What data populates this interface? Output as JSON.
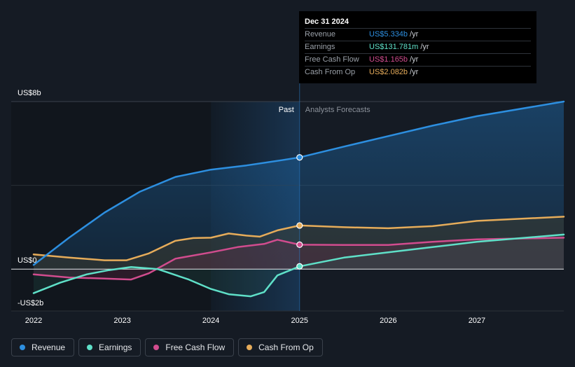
{
  "chart_data": {
    "type": "line",
    "x_axis": {
      "min": 2022.0,
      "max": 2027.98,
      "ticks": [
        "2022",
        "2023",
        "2024",
        "2025",
        "2026",
        "2027"
      ]
    },
    "y_axis": {
      "min": -2,
      "max": 8,
      "tick_labels": [
        {
          "value": 8,
          "label": "US$8b"
        },
        {
          "value": 0,
          "label": "US$0"
        },
        {
          "value": -2,
          "label": "-US$2b"
        }
      ]
    },
    "past_label": "Past",
    "forecast_label": "Analysts Forecasts",
    "divider_x": 2025.0,
    "highlight_start_x": 2024.0,
    "series": [
      {
        "name": "Revenue",
        "color": "#2d8fe0",
        "fill": true,
        "marker": 5.334,
        "points": [
          [
            2022.0,
            0.2
          ],
          [
            2022.4,
            1.5
          ],
          [
            2022.8,
            2.7
          ],
          [
            2023.2,
            3.7
          ],
          [
            2023.6,
            4.4
          ],
          [
            2024.0,
            4.75
          ],
          [
            2024.4,
            4.95
          ],
          [
            2024.8,
            5.2
          ],
          [
            2025.0,
            5.334
          ],
          [
            2025.5,
            5.85
          ],
          [
            2026.0,
            6.35
          ],
          [
            2026.5,
            6.85
          ],
          [
            2027.0,
            7.3
          ],
          [
            2027.98,
            8.0
          ]
        ]
      },
      {
        "name": "Earnings",
        "color": "#5fe0c8",
        "fill": false,
        "marker": 0.132,
        "points": [
          [
            2022.0,
            -1.15
          ],
          [
            2022.3,
            -0.65
          ],
          [
            2022.6,
            -0.25
          ],
          [
            2022.85,
            -0.05
          ],
          [
            2023.1,
            0.1
          ],
          [
            2023.4,
            0.0
          ],
          [
            2023.75,
            -0.5
          ],
          [
            2024.0,
            -0.95
          ],
          [
            2024.2,
            -1.2
          ],
          [
            2024.45,
            -1.3
          ],
          [
            2024.6,
            -1.1
          ],
          [
            2024.75,
            -0.3
          ],
          [
            2025.0,
            0.132
          ],
          [
            2025.5,
            0.55
          ],
          [
            2026.0,
            0.8
          ],
          [
            2026.5,
            1.05
          ],
          [
            2027.0,
            1.3
          ],
          [
            2027.98,
            1.65
          ]
        ]
      },
      {
        "name": "Free Cash Flow",
        "color": "#d14c8e",
        "fill": false,
        "marker": 1.165,
        "points": [
          [
            2022.0,
            -0.25
          ],
          [
            2022.4,
            -0.4
          ],
          [
            2022.8,
            -0.45
          ],
          [
            2023.1,
            -0.5
          ],
          [
            2023.3,
            -0.2
          ],
          [
            2023.6,
            0.5
          ],
          [
            2024.0,
            0.8
          ],
          [
            2024.3,
            1.05
          ],
          [
            2024.6,
            1.2
          ],
          [
            2024.75,
            1.4
          ],
          [
            2025.0,
            1.165
          ],
          [
            2025.5,
            1.15
          ],
          [
            2026.0,
            1.15
          ],
          [
            2026.5,
            1.3
          ],
          [
            2027.0,
            1.42
          ],
          [
            2027.98,
            1.5
          ]
        ]
      },
      {
        "name": "Cash From Op",
        "color": "#e6ac5a",
        "fill": true,
        "marker": 2.082,
        "points": [
          [
            2022.0,
            0.7
          ],
          [
            2022.4,
            0.55
          ],
          [
            2022.8,
            0.42
          ],
          [
            2023.05,
            0.42
          ],
          [
            2023.3,
            0.75
          ],
          [
            2023.6,
            1.35
          ],
          [
            2023.8,
            1.48
          ],
          [
            2024.0,
            1.5
          ],
          [
            2024.2,
            1.7
          ],
          [
            2024.4,
            1.6
          ],
          [
            2024.55,
            1.55
          ],
          [
            2024.75,
            1.85
          ],
          [
            2025.0,
            2.082
          ],
          [
            2025.5,
            2.0
          ],
          [
            2026.0,
            1.95
          ],
          [
            2026.5,
            2.05
          ],
          [
            2027.0,
            2.3
          ],
          [
            2027.98,
            2.5
          ]
        ]
      }
    ]
  },
  "tooltip": {
    "date": "Dec 31 2024",
    "rows": [
      {
        "label": "Revenue",
        "value": "US$5.334b",
        "unit": "/yr",
        "color": "#2d8fe0"
      },
      {
        "label": "Earnings",
        "value": "US$131.781m",
        "unit": "/yr",
        "color": "#5fe0c8"
      },
      {
        "label": "Free Cash Flow",
        "value": "US$1.165b",
        "unit": "/yr",
        "color": "#d14c8e"
      },
      {
        "label": "Cash From Op",
        "value": "US$2.082b",
        "unit": "/yr",
        "color": "#e6ac5a"
      }
    ]
  },
  "legend": [
    {
      "label": "Revenue",
      "color": "#2d8fe0"
    },
    {
      "label": "Earnings",
      "color": "#5fe0c8"
    },
    {
      "label": "Free Cash Flow",
      "color": "#d14c8e"
    },
    {
      "label": "Cash From Op",
      "color": "#e6ac5a"
    }
  ]
}
